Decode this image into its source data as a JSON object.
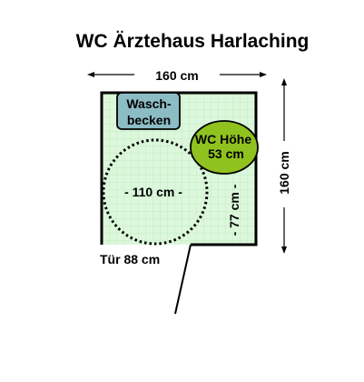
{
  "title": "WC Ärztehaus Harlaching",
  "dimensions": {
    "width_label": "160 cm",
    "depth_label": "160 cm",
    "turning_circle_label": "- 110 cm -",
    "side_clearance_label": "- 77 cm -",
    "door_label": "Tür 88 cm"
  },
  "fixtures": {
    "sink_line1": "Wasch-",
    "sink_line2": "becken",
    "wc_line1": "WC Höhe",
    "wc_line2": "53 cm"
  },
  "colors": {
    "floor_fill": "#dcf7dc",
    "floor_grid": "#c2ecc2",
    "sink_fill": "#8cbcc4",
    "wc_fill": "#8fc21f",
    "wall": "#000000"
  }
}
